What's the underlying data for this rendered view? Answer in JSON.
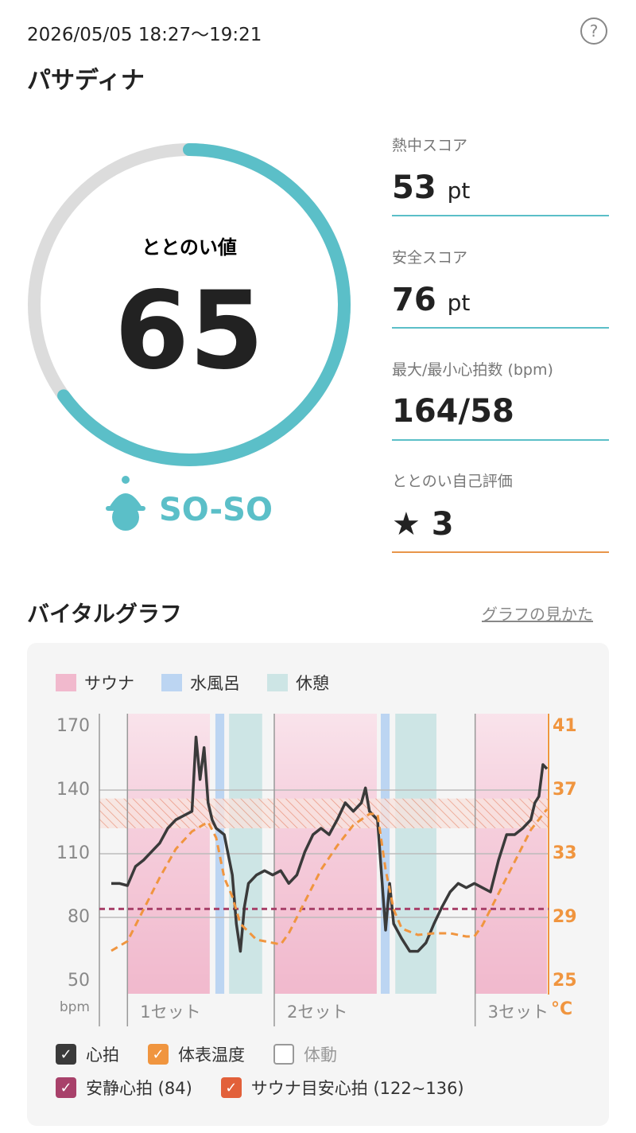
{
  "header": {
    "datetime": "2026/05/05 18:27～19:21",
    "help": "?",
    "location": "パサディナ"
  },
  "score": {
    "label": "ととのい値",
    "value": 65,
    "rating": "SO-SO"
  },
  "stats": [
    {
      "label": "熱中スコア",
      "value": "53",
      "unit": "pt"
    },
    {
      "label": "安全スコア",
      "value": "76",
      "unit": "pt"
    },
    {
      "label": "最大/最小心拍数 (bpm)",
      "value": "164/58"
    },
    {
      "label": "ととのい自己評価",
      "value": "3"
    }
  ],
  "section": {
    "title": "バイタルグラフ",
    "link": "グラフの見かた"
  },
  "chart_data": {
    "type": "line",
    "legend": [
      {
        "name": "サウナ",
        "color": "#f1b9cd",
        "zones": [
          [
            2,
            12.2
          ],
          [
            20.2,
            32.9
          ],
          [
            45.1,
            54
          ]
        ]
      },
      {
        "name": "水風呂",
        "color": "#bcd5f2",
        "zones": [
          [
            12.9,
            14
          ],
          [
            33.4,
            34.5
          ]
        ]
      },
      {
        "name": "休憩",
        "color": "#cde5e5",
        "zones": [
          [
            14.6,
            18.7
          ],
          [
            35.2,
            40.3
          ]
        ]
      }
    ],
    "categories": [
      "1セット",
      "2セット",
      "3セット"
    ],
    "xlim": [
      0,
      54
    ],
    "ylim": [
      50,
      170
    ],
    "yticks": [
      50,
      80,
      110,
      140,
      170
    ],
    "ylabel": "bpm",
    "y2lim": [
      25,
      41
    ],
    "y2ticks": [
      25,
      29,
      33,
      37,
      41
    ],
    "y2label": "°C",
    "series": [
      {
        "name": "心拍",
        "color": "#3a3a3a",
        "x": [
          0,
          1,
          2,
          3,
          4,
          5,
          6,
          7,
          8,
          9,
          10,
          10.5,
          11,
          11.5,
          12,
          12.5,
          13,
          14,
          15,
          15.5,
          16,
          16.5,
          17,
          18,
          19,
          20,
          21,
          22,
          23,
          24,
          25,
          26,
          27,
          28,
          29,
          30,
          31,
          31.5,
          32,
          33,
          33.5,
          34,
          34.5,
          35,
          36,
          37,
          38,
          39,
          40,
          41,
          42,
          43,
          44,
          45,
          46,
          47,
          48,
          49,
          50,
          51,
          52,
          52.5,
          53,
          53.5,
          54
        ],
        "values": [
          96,
          96,
          95,
          104,
          107,
          111,
          115,
          122,
          126,
          128,
          130,
          165,
          145,
          160,
          134,
          126,
          122,
          119,
          100,
          77,
          64,
          85,
          96,
          100,
          102,
          100,
          102,
          96,
          100,
          111,
          119,
          122,
          119,
          126,
          134,
          130,
          134,
          141,
          130,
          126,
          100,
          74,
          96,
          77,
          70,
          64,
          64,
          68,
          77,
          85,
          92,
          96,
          94,
          96,
          94,
          92,
          107,
          119,
          119,
          122,
          126,
          134,
          137,
          152,
          150
        ]
      },
      {
        "name": "体表温度",
        "color": "#f0953f",
        "axis": "y2",
        "x": [
          0,
          2,
          4,
          6,
          8,
          10,
          12,
          13,
          14,
          15,
          16,
          18,
          20,
          21,
          22,
          24,
          26,
          28,
          30,
          32,
          33,
          34,
          35,
          36,
          38,
          40,
          42,
          44,
          45,
          46,
          48,
          50,
          52,
          54
        ],
        "values": [
          26.9,
          27.5,
          29.5,
          31.5,
          33.3,
          34.4,
          35,
          34,
          31.5,
          30.3,
          28.6,
          27.6,
          27.4,
          27.3,
          28,
          30,
          32,
          33.5,
          34.8,
          35.5,
          35.5,
          32,
          29.5,
          28.3,
          27.9,
          28,
          28,
          27.8,
          27.8,
          28.5,
          30.5,
          32.5,
          34.5,
          35.8
        ]
      }
    ],
    "toggles": [
      "体動"
    ],
    "resting": {
      "name": "安静心拍 (84)",
      "value": 84,
      "color": "#a8416a"
    },
    "target": {
      "name": "サウナ目安心拍 (122~136)",
      "range": [
        122,
        136
      ],
      "color": "#e2603a"
    }
  }
}
